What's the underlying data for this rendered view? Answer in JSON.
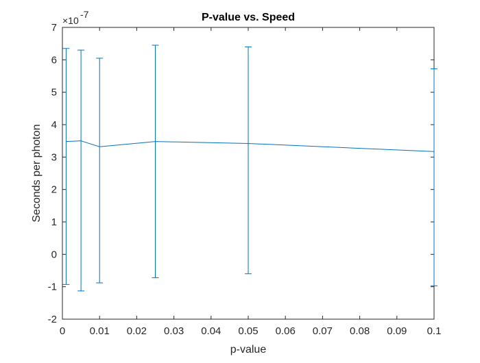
{
  "chart_data": {
    "type": "line",
    "title": "P-value vs. Speed",
    "xlabel": "p-value",
    "ylabel": "Seconds per photon",
    "y_multiplier": "×10",
    "y_exponent": "-7",
    "xlim": [
      0,
      0.1
    ],
    "ylim": [
      -2,
      7
    ],
    "x_ticks": [
      "0",
      "0.01",
      "0.02",
      "0.03",
      "0.04",
      "0.05",
      "0.06",
      "0.07",
      "0.08",
      "0.09",
      "0.1"
    ],
    "y_ticks": [
      "-2",
      "-1",
      "0",
      "1",
      "2",
      "3",
      "4",
      "5",
      "6",
      "7"
    ],
    "grid": false,
    "series": [
      {
        "x": [
          0.001,
          0.005,
          0.01,
          0.025,
          0.05,
          0.1
        ],
        "y": [
          3.48,
          3.5,
          3.32,
          3.48,
          3.42,
          3.17
        ],
        "error_low": [
          -0.93,
          -1.13,
          -0.88,
          -0.72,
          -0.6,
          -0.97
        ],
        "error_high": [
          6.35,
          6.3,
          6.05,
          6.45,
          6.4,
          5.72
        ],
        "color": "#0072BD"
      }
    ]
  }
}
